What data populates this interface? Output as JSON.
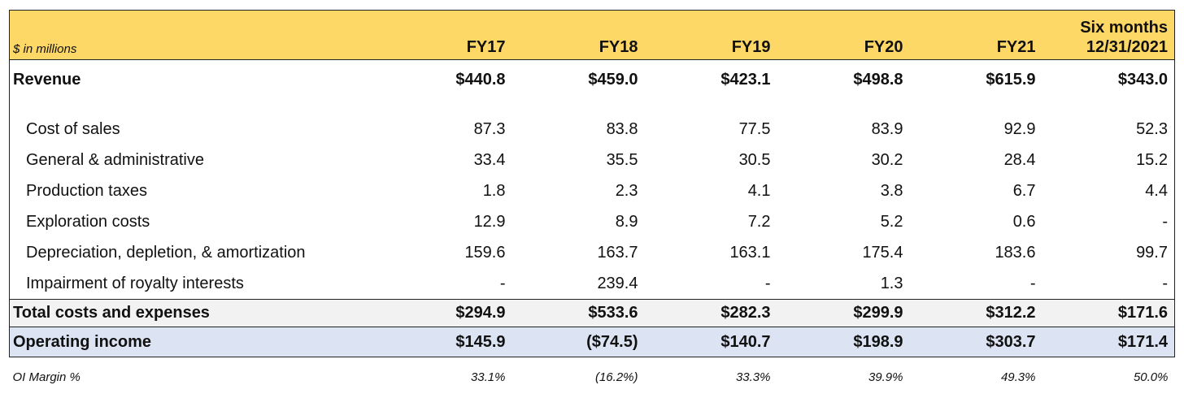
{
  "header": {
    "unit_label": "$ in millions",
    "columns": [
      "FY17",
      "FY18",
      "FY19",
      "FY20",
      "FY21"
    ],
    "last_column": {
      "line1": "Six months",
      "line2": "12/31/2021"
    }
  },
  "revenue": {
    "label": "Revenue",
    "values": [
      "$440.8",
      "$459.0",
      "$423.1",
      "$498.8",
      "$615.9",
      "$343.0"
    ]
  },
  "expenses": [
    {
      "label": "Cost of sales",
      "values": [
        "87.3",
        "83.8",
        "77.5",
        "83.9",
        "92.9",
        "52.3"
      ]
    },
    {
      "label": "General & administrative",
      "values": [
        "33.4",
        "35.5",
        "30.5",
        "30.2",
        "28.4",
        "15.2"
      ]
    },
    {
      "label": "Production taxes",
      "values": [
        "1.8",
        "2.3",
        "4.1",
        "3.8",
        "6.7",
        "4.4"
      ]
    },
    {
      "label": "Exploration costs",
      "values": [
        "12.9",
        "8.9",
        "7.2",
        "5.2",
        "0.6",
        "-"
      ]
    },
    {
      "label": "Depreciation, depletion, & amortization",
      "values": [
        "159.6",
        "163.7",
        "163.1",
        "175.4",
        "183.6",
        "99.7"
      ]
    },
    {
      "label": "Impairment of royalty interests",
      "values": [
        "-",
        "239.4",
        "-",
        "1.3",
        "-",
        "-"
      ]
    }
  ],
  "total": {
    "label": "Total costs and expenses",
    "values": [
      "$294.9",
      "$533.6",
      "$282.3",
      "$299.9",
      "$312.2",
      "$171.6"
    ]
  },
  "operating_income": {
    "label": "Operating income",
    "values": [
      "$145.9",
      "($74.5)",
      "$140.7",
      "$198.9",
      "$303.7",
      "$171.4"
    ]
  },
  "margin": {
    "label": "OI Margin %",
    "values": [
      "33.1%",
      "(16.2%)",
      "33.3%",
      "39.9%",
      "49.3%",
      "50.0%"
    ]
  }
}
